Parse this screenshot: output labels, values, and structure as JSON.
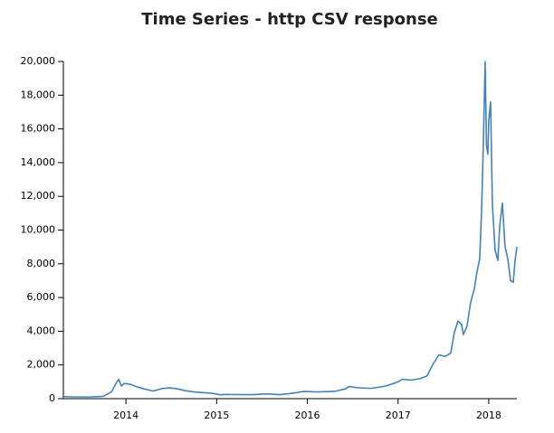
{
  "chart_data": {
    "type": "line",
    "title": "Time Series - http CSV response",
    "color": "#4682b4",
    "x": [
      2013.31,
      2013.45,
      2013.6,
      2013.75,
      2013.84,
      2013.89,
      2013.92,
      2013.95,
      2013.98,
      2014.05,
      2014.12,
      2014.2,
      2014.3,
      2014.4,
      2014.48,
      2014.55,
      2014.65,
      2014.75,
      2014.85,
      2014.95,
      2015.04,
      2015.12,
      2015.25,
      2015.4,
      2015.5,
      2015.6,
      2015.7,
      2015.8,
      2015.88,
      2015.96,
      2016.1,
      2016.3,
      2016.42,
      2016.46,
      2016.55,
      2016.7,
      2016.85,
      2016.95,
      2017.0,
      2017.05,
      2017.15,
      2017.25,
      2017.32,
      2017.38,
      2017.45,
      2017.52,
      2017.58,
      2017.62,
      2017.66,
      2017.7,
      2017.72,
      2017.76,
      2017.8,
      2017.84,
      2017.87,
      2017.9,
      2017.92,
      2017.935,
      2017.95,
      2017.96,
      2017.975,
      2017.99,
      2018.0,
      2018.02,
      2018.04,
      2018.07,
      2018.1,
      2018.12,
      2018.15,
      2018.18,
      2018.21,
      2018.24,
      2018.27,
      2018.29,
      2018.31
    ],
    "values": [
      120,
      100,
      100,
      140,
      400,
      900,
      1150,
      750,
      900,
      850,
      700,
      580,
      450,
      600,
      640,
      600,
      480,
      400,
      360,
      320,
      230,
      250,
      240,
      240,
      270,
      270,
      240,
      300,
      360,
      430,
      400,
      430,
      580,
      720,
      650,
      610,
      730,
      900,
      1000,
      1150,
      1100,
      1200,
      1350,
      2000,
      2600,
      2500,
      2700,
      3900,
      4600,
      4400,
      3800,
      4300,
      5700,
      6500,
      7500,
      8300,
      11000,
      14000,
      17500,
      20000,
      15000,
      14500,
      16500,
      17600,
      11500,
      8800,
      8200,
      10200,
      11600,
      9000,
      8300,
      7000,
      6900,
      8200,
      9000
    ],
    "xlim": [
      2013.31,
      2018.31
    ],
    "xticks": [
      2014,
      2015,
      2016,
      2017,
      2018
    ],
    "ylim": [
      0,
      20000
    ],
    "yticks": [
      0,
      {
        "value": 2000,
        "label": "2,000"
      },
      {
        "value": 4000,
        "label": "4,000"
      },
      {
        "value": 6000,
        "label": "6,000"
      },
      {
        "value": 8000,
        "label": "8,000"
      },
      {
        "value": 10000,
        "label": "10,000"
      },
      {
        "value": 12000,
        "label": "12,000"
      },
      {
        "value": 14000,
        "label": "14,000"
      },
      {
        "value": 16000,
        "label": "16,000"
      },
      {
        "value": 18000,
        "label": "18,000"
      },
      {
        "value": 20000,
        "label": "20,000"
      }
    ]
  }
}
